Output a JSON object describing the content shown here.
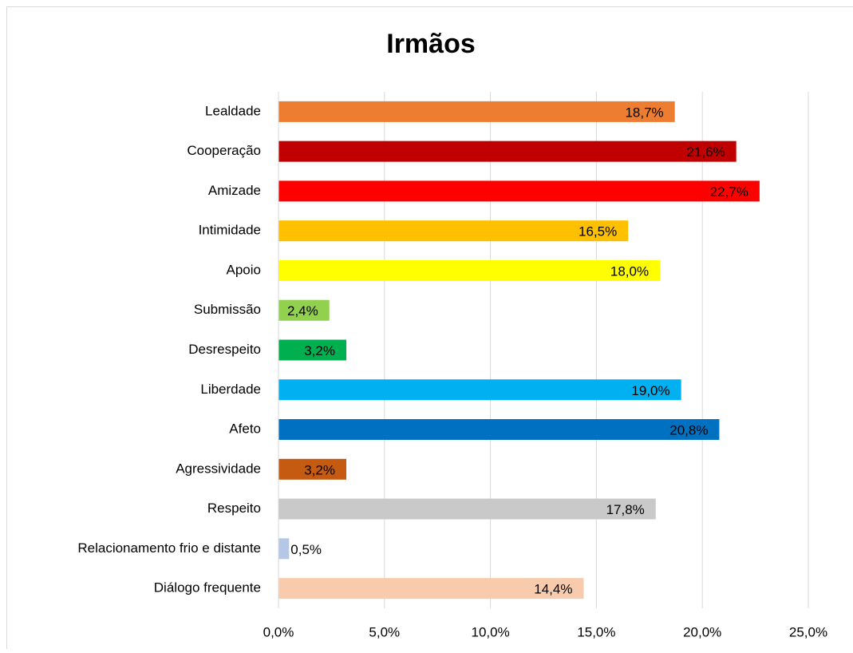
{
  "chart_data": {
    "type": "hbar",
    "title": "Irmãos",
    "categories": [
      "Lealdade",
      "Cooperação",
      "Amizade",
      "Intimidade",
      "Apoio",
      "Submissão",
      "Desrespeito",
      "Liberdade",
      "Afeto",
      "Agressividade",
      "Respeito",
      "Relacionamento frio e distante",
      "Diálogo frequente"
    ],
    "values": [
      18.7,
      21.6,
      22.7,
      16.5,
      18.0,
      2.4,
      3.2,
      19.0,
      20.8,
      3.2,
      17.8,
      0.5,
      14.4
    ],
    "value_labels": [
      "18,7%",
      "21,6%",
      "22,7%",
      "16,5%",
      "18,0%",
      "2,4%",
      "3,2%",
      "19,0%",
      "20,8%",
      "3,2%",
      "17,8%",
      "0,5%",
      "14,4%"
    ],
    "colors": [
      "#ed7d31",
      "#c00000",
      "#ff0000",
      "#ffc000",
      "#ffff00",
      "#92d050",
      "#00b050",
      "#00b0f0",
      "#0070c0",
      "#c55a11",
      "#c9c9c9",
      "#b4c7e7",
      "#f8cbad"
    ],
    "xlim": [
      0,
      25
    ],
    "xticks": [
      {
        "value": 0,
        "label": "0,0%"
      },
      {
        "value": 5,
        "label": "5,0%"
      },
      {
        "value": 10,
        "label": "10,0%"
      },
      {
        "value": 15,
        "label": "15,0%"
      },
      {
        "value": 20,
        "label": "20,0%"
      },
      {
        "value": 25,
        "label": "25,0%"
      }
    ],
    "grid": true
  }
}
